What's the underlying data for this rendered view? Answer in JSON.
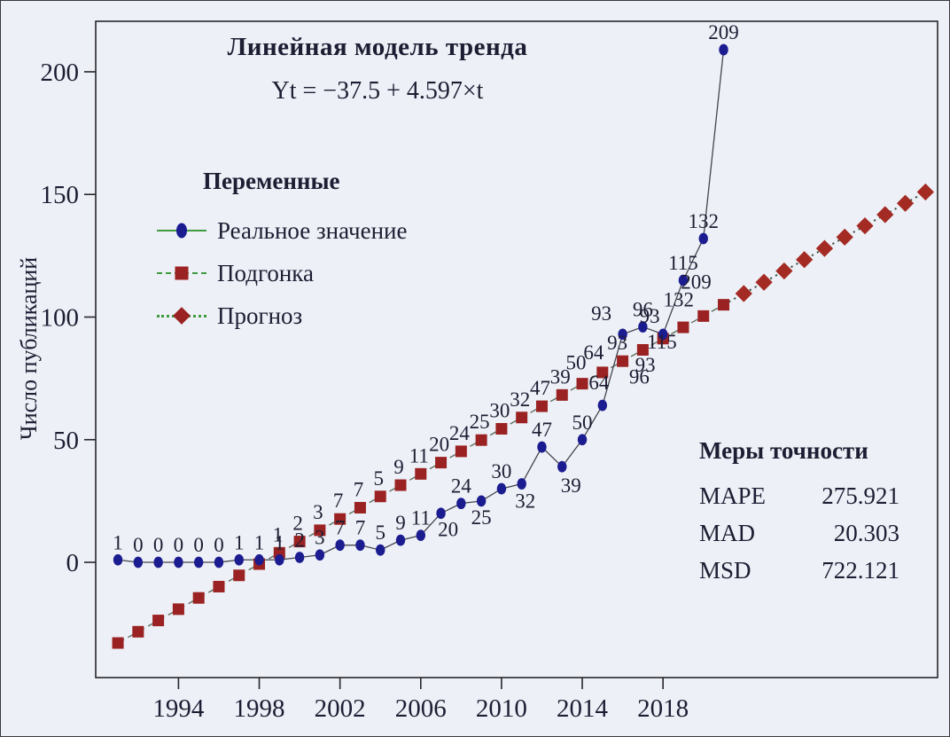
{
  "figure": {
    "title": "Линейная модель тренда",
    "equation": "Yt = −37.5 + 4.597×t",
    "ylabel": "Число публикаций"
  },
  "legend": {
    "title": "Переменные",
    "items": [
      {
        "label": "Реальное значение",
        "marker": "circle-marker-icon",
        "line": "solid"
      },
      {
        "label": "Подгонка",
        "marker": "square-marker-icon",
        "line": "dashed"
      },
      {
        "label": "Прогноз",
        "marker": "diamond-marker-icon",
        "line": "dotted"
      }
    ]
  },
  "accuracy": {
    "title": "Меры точности",
    "rows": [
      {
        "name": "MAPE",
        "value": "275.921"
      },
      {
        "name": "MAD",
        "value": "20.303"
      },
      {
        "name": "MSD",
        "value": "722.121"
      }
    ]
  },
  "colors": {
    "background": "#edf0f6",
    "frame": "#26262b",
    "actual_marker": "#1c1c91",
    "fit_marker": "#9a2222",
    "forecast_marker": "#a42a24",
    "actual_line": "#45454d",
    "fit_line": "#5c6e5e",
    "forecast_line": "#3f5244",
    "legend_line": "#3f9b3f",
    "text": "#1d1d33"
  },
  "chart_data": {
    "type": "line",
    "title": "Линейная модель тренда",
    "equation": "Yt = −37.5 + 4.597×t",
    "xlabel": "",
    "ylabel": "Число публикаций",
    "xticks": [
      1994,
      1998,
      2002,
      2006,
      2010,
      2014,
      2018
    ],
    "yticks": [
      0,
      50,
      100,
      150,
      200
    ],
    "xlim": [
      1989.9,
      2031.6
    ],
    "ylim": [
      -47,
      220.6
    ],
    "grid": false,
    "legend_position": "upper-left-inside",
    "series": [
      {
        "name": "Реальное значение",
        "role": "actual",
        "marker": "circle",
        "years": [
          1991,
          1992,
          1993,
          1994,
          1995,
          1996,
          1997,
          1998,
          1999,
          2000,
          2001,
          2002,
          2003,
          2004,
          2005,
          2006,
          2007,
          2008,
          2009,
          2010,
          2011,
          2012,
          2013,
          2014,
          2015,
          2016,
          2017,
          2018,
          2019,
          2020,
          2021
        ],
        "values": [
          1,
          0,
          0,
          0,
          0,
          0,
          1,
          1,
          1,
          2,
          3,
          7,
          7,
          5,
          9,
          11,
          20,
          24,
          25,
          30,
          32,
          47,
          39,
          50,
          64,
          93,
          96,
          93,
          115,
          132,
          209
        ],
        "point_labels": [
          "1",
          "0",
          "0",
          "0",
          "0",
          "0",
          "1",
          "1",
          "1",
          "2",
          "3",
          "7",
          "7",
          "5",
          "9",
          "11",
          "20",
          "24",
          "25",
          "30",
          "32",
          "47",
          "39",
          "50",
          "64",
          "93",
          "96",
          "93",
          "115",
          "132",
          "209"
        ]
      },
      {
        "name": "Подгонка",
        "role": "fits",
        "marker": "square",
        "years": [
          1991,
          1992,
          1993,
          1994,
          1995,
          1996,
          1997,
          1998,
          1999,
          2000,
          2001,
          2002,
          2003,
          2004,
          2005,
          2006,
          2007,
          2008,
          2009,
          2010,
          2011,
          2012,
          2013,
          2014,
          2015,
          2016,
          2017,
          2018,
          2019,
          2020,
          2021
        ],
        "values": [
          -32.9,
          -28.31,
          -23.71,
          -19.11,
          -14.52,
          -9.92,
          -5.32,
          -0.72,
          3.87,
          8.47,
          13.07,
          17.66,
          22.26,
          26.86,
          31.46,
          36.05,
          40.65,
          45.25,
          49.84,
          54.44,
          59.04,
          63.63,
          68.23,
          72.83,
          77.43,
          82.02,
          86.62,
          91.22,
          95.81,
          100.41,
          105.01
        ],
        "point_labels": [
          null,
          null,
          null,
          null,
          null,
          null,
          null,
          null,
          "1",
          "2",
          "3",
          "7",
          "7",
          "5",
          "9",
          "11",
          "20",
          "24",
          "25",
          "30",
          "32",
          "47",
          "39",
          "50",
          "64",
          "93",
          "96",
          "93",
          "115",
          "132",
          "209"
        ]
      },
      {
        "name": "Прогноз",
        "role": "forecast",
        "marker": "diamond",
        "years": [
          2022,
          2023,
          2024,
          2025,
          2026,
          2027,
          2028,
          2029,
          2030,
          2031
        ],
        "values": [
          109.6,
          114.2,
          118.8,
          123.4,
          127.99,
          132.59,
          137.19,
          141.78,
          146.38,
          150.98
        ],
        "point_labels": [
          null,
          null,
          null,
          null,
          null,
          null,
          null,
          null,
          null,
          null
        ]
      }
    ]
  }
}
